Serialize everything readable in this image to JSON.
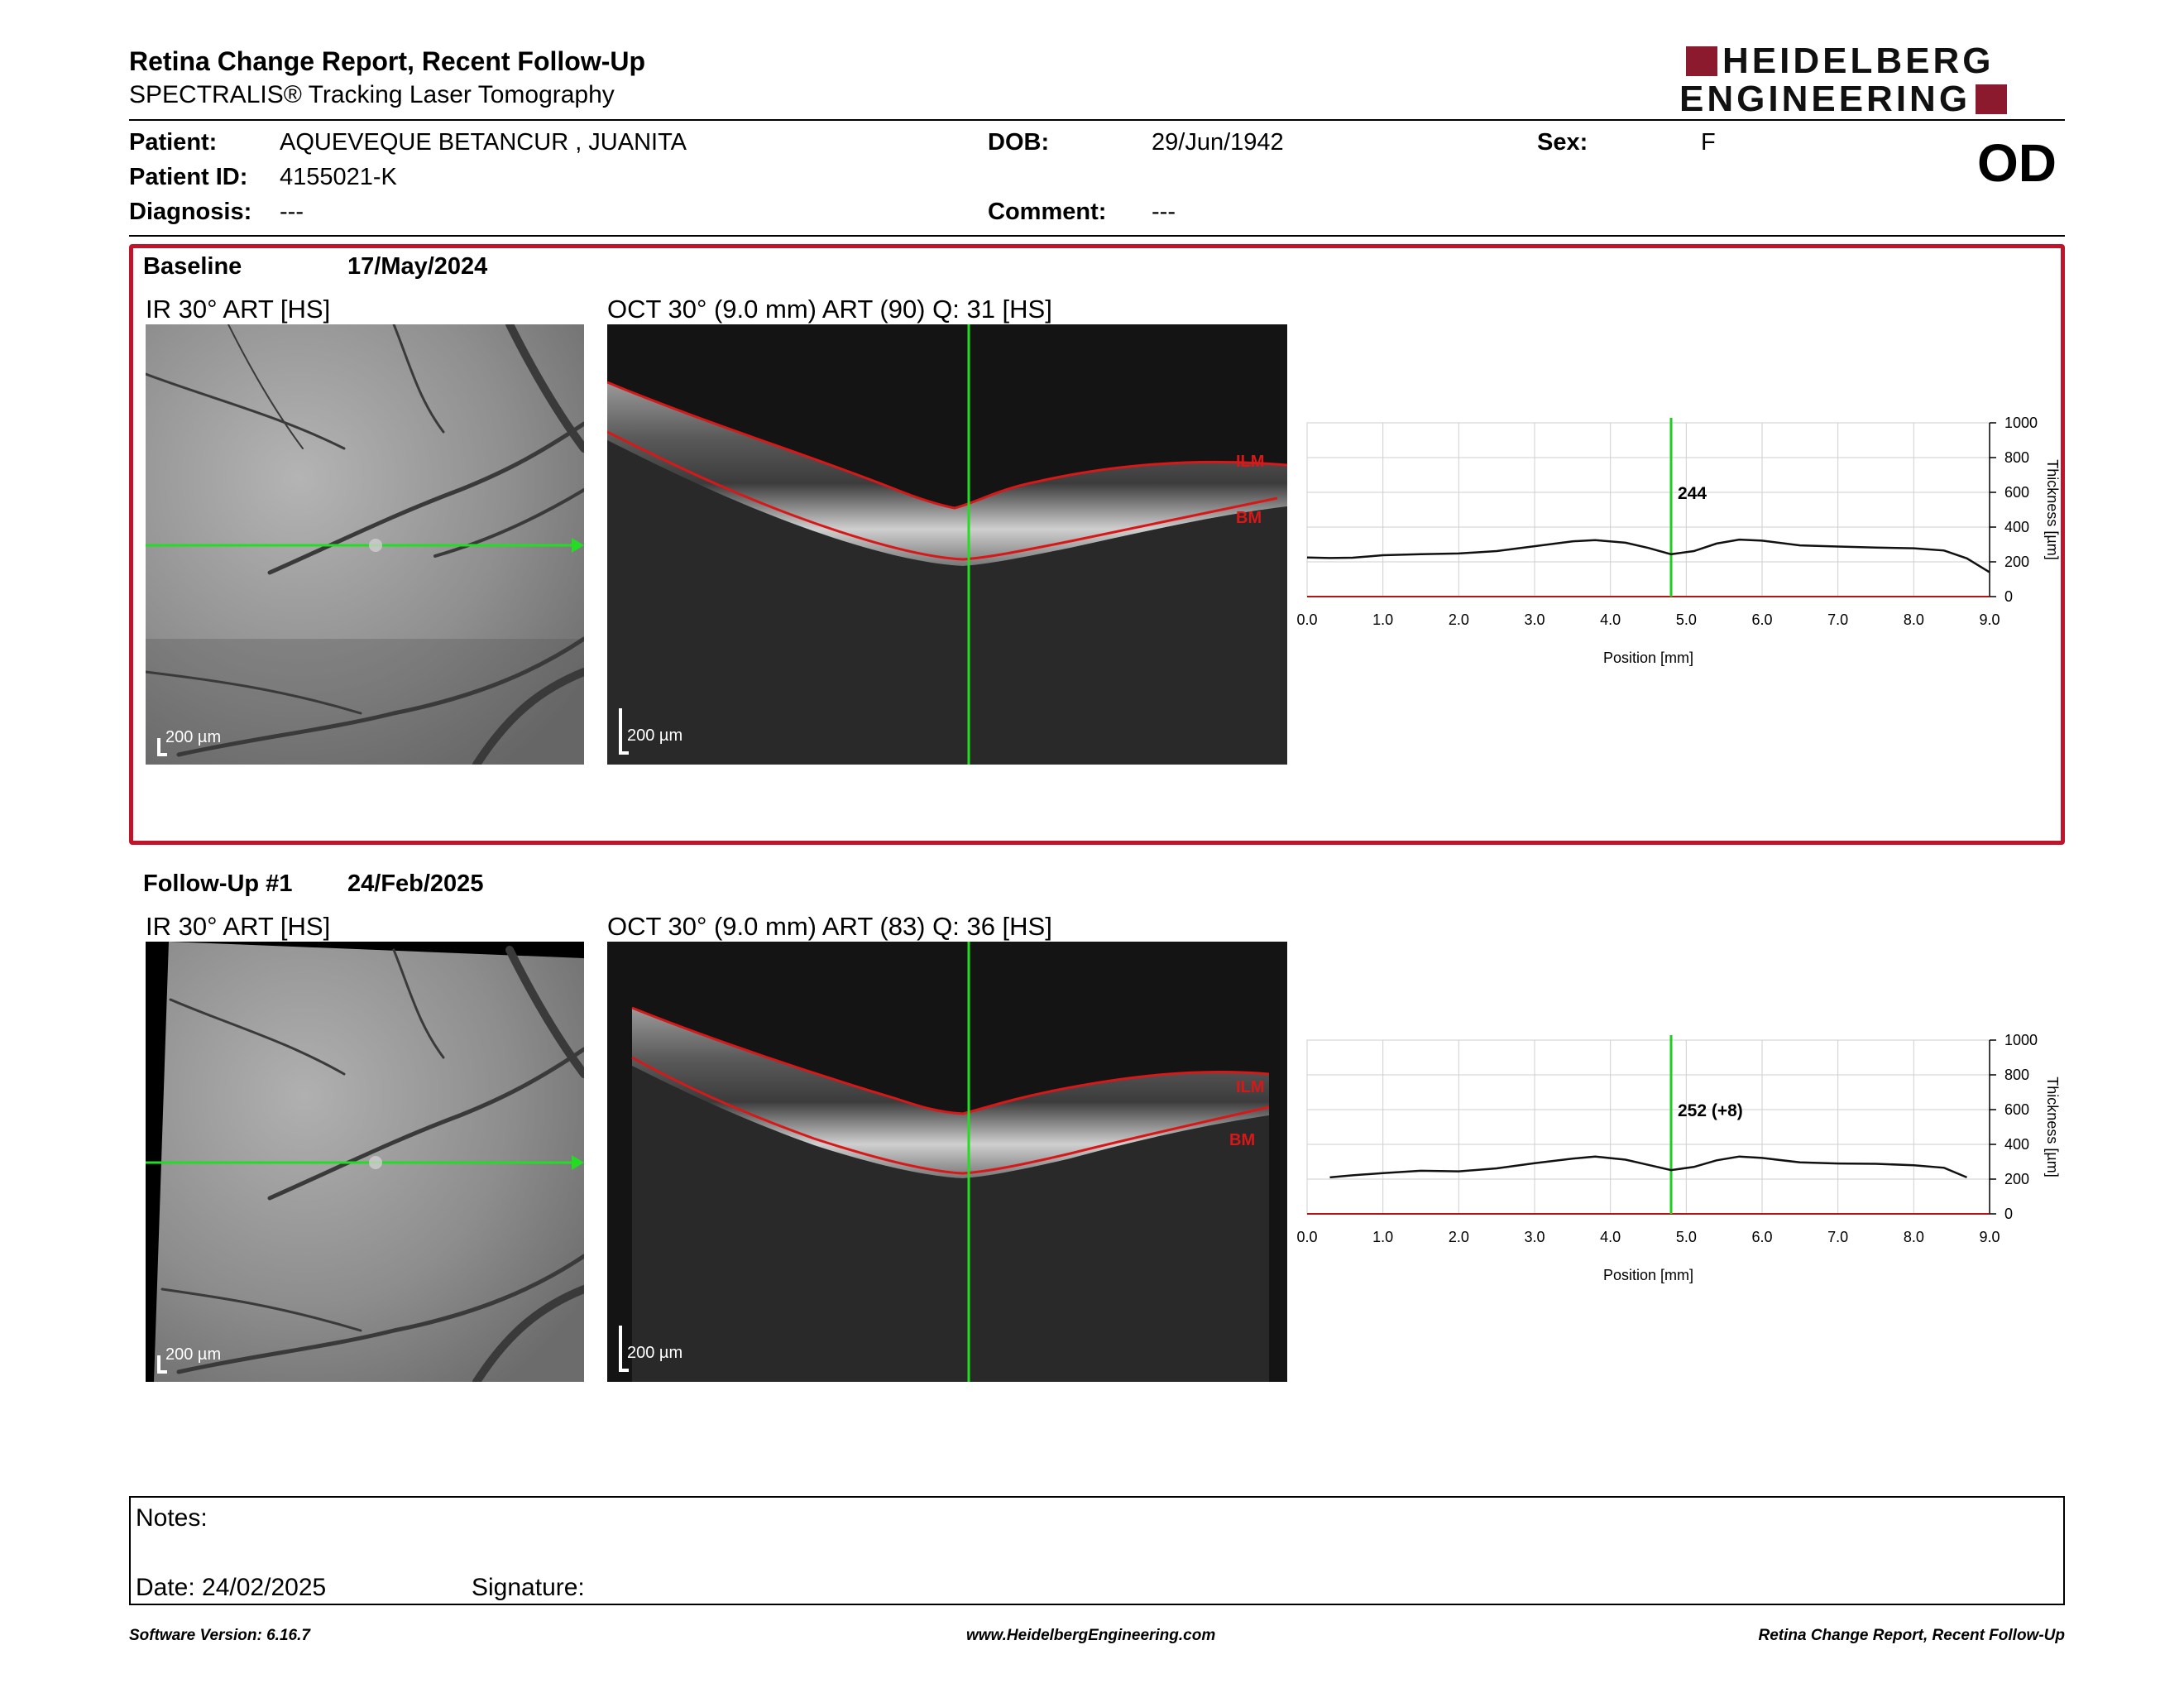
{
  "header": {
    "title": "Retina Change Report, Recent Follow-Up",
    "subtitle": "SPECTRALIS® Tracking Laser Tomography",
    "logo_line1": "HEIDELBERG",
    "logo_line2": "ENGINEERING",
    "brand_color": "#8c1a2e"
  },
  "patient": {
    "patient_label": "Patient:",
    "patient_value": "AQUEVEQUE BETANCUR , JUANITA",
    "id_label": "Patient ID:",
    "id_value": "4155021-K",
    "diagnosis_label": "Diagnosis:",
    "diagnosis_value": "---",
    "dob_label": "DOB:",
    "dob_value": "29/Jun/1942",
    "comment_label": "Comment:",
    "comment_value": "---",
    "sex_label": "Sex:",
    "sex_value": "F",
    "eye": "OD"
  },
  "sections": [
    {
      "label": "Baseline",
      "date": "17/May/2024",
      "ir_title": "IR 30° ART [HS]",
      "oct_title": "OCT 30° (9.0 mm) ART (90) Q: 31 [HS]",
      "scale": "200 µm",
      "ilm_label": "ILM",
      "bm_label": "BM",
      "value_label": "244"
    },
    {
      "label": "Follow-Up #1",
      "date": "24/Feb/2025",
      "ir_title": "IR 30° ART [HS]",
      "oct_title": "OCT 30° (9.0 mm) ART (83) Q: 36 [HS]",
      "scale": "200 µm",
      "ilm_label": "ILM",
      "bm_label": "BM",
      "value_label": "252 (+8)"
    }
  ],
  "chart_data": [
    {
      "type": "line",
      "title": "",
      "xlabel": "Position [mm]",
      "ylabel": "Thickness [µm]",
      "xlim": [
        0,
        9
      ],
      "ylim": [
        0,
        1000
      ],
      "x_ticks": [
        "0.0",
        "1.0",
        "2.0",
        "3.0",
        "4.0",
        "5.0",
        "6.0",
        "7.0",
        "8.0",
        "9.0"
      ],
      "y_ticks": [
        "0",
        "200",
        "400",
        "600",
        "800",
        "1000"
      ],
      "grid": true,
      "cursor_x": 4.8,
      "cursor_label": "244",
      "series": [
        {
          "x": [
            0.0,
            0.3,
            0.6,
            1.0,
            1.5,
            2.0,
            2.5,
            3.0,
            3.5,
            3.8,
            4.2,
            4.5,
            4.8,
            5.1,
            5.4,
            5.7,
            6.0,
            6.5,
            7.0,
            7.5,
            8.0,
            8.4,
            8.7,
            9.0
          ],
          "y": [
            225,
            222,
            224,
            238,
            244,
            248,
            262,
            290,
            318,
            325,
            310,
            280,
            244,
            262,
            305,
            328,
            322,
            295,
            288,
            282,
            278,
            265,
            220,
            140
          ]
        }
      ]
    },
    {
      "type": "line",
      "title": "",
      "xlabel": "Position [mm]",
      "ylabel": "Thickness [µm]",
      "xlim": [
        0,
        9
      ],
      "ylim": [
        0,
        1000
      ],
      "x_ticks": [
        "0.0",
        "1.0",
        "2.0",
        "3.0",
        "4.0",
        "5.0",
        "6.0",
        "7.0",
        "8.0",
        "9.0"
      ],
      "y_ticks": [
        "0",
        "200",
        "400",
        "600",
        "800",
        "1000"
      ],
      "grid": true,
      "cursor_x": 4.8,
      "cursor_label": "252 (+8)",
      "series": [
        {
          "x": [
            0.3,
            0.6,
            1.0,
            1.5,
            2.0,
            2.5,
            3.0,
            3.5,
            3.8,
            4.2,
            4.5,
            4.8,
            5.1,
            5.4,
            5.7,
            6.0,
            6.5,
            7.0,
            7.5,
            8.0,
            8.4,
            8.7
          ],
          "y": [
            210,
            222,
            235,
            248,
            245,
            262,
            292,
            318,
            330,
            312,
            282,
            252,
            270,
            308,
            330,
            322,
            296,
            290,
            288,
            280,
            265,
            210
          ]
        }
      ]
    }
  ],
  "notes": {
    "notes_label": "Notes:",
    "date_label": "Date: 24/02/2025",
    "signature_label": "Signature:"
  },
  "footer": {
    "software": "Software Version: 6.16.7",
    "website": "www.HeidelbergEngineering.com",
    "report": "Retina Change Report, Recent Follow-Up"
  }
}
